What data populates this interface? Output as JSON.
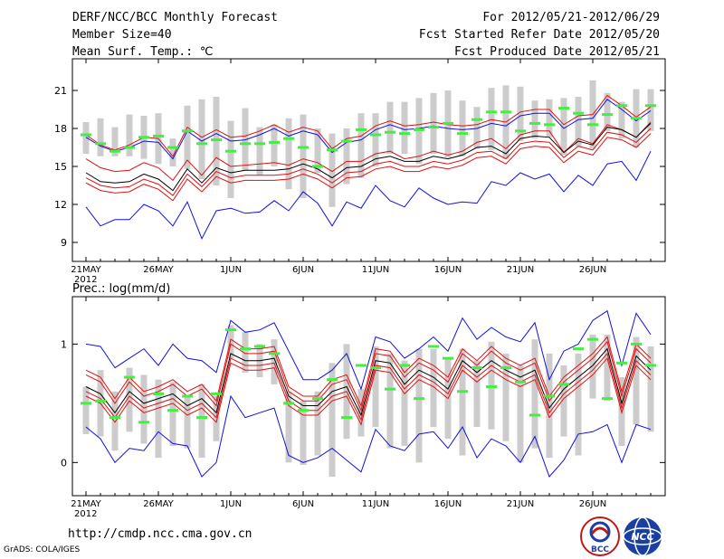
{
  "header": {
    "title": "DERF/NCC/BCC Monthly Forecast",
    "member_size": "Member Size=40",
    "variable": "Mean Surf. Temp.: ℃",
    "period": "For 2012/05/21-2012/06/29",
    "started": "Fcst Started Refer Date 2012/05/20",
    "produced": "Fcst Produced Date 2012/05/21"
  },
  "footer": {
    "url": "http://cmdp.ncc.cma.gov.cn",
    "grads": "GrADS: COLA/IGES",
    "logo_bcc": "BCC",
    "logo_ncc": "NCC"
  },
  "colors": {
    "envelope": "#1010e0",
    "ci": "#e01010",
    "mean": "#000000",
    "obs": "#44ee44",
    "box": "#cccccc"
  },
  "chart_data": [
    {
      "type": "line",
      "title": "Mean Surf. Temp.: ℃",
      "days": 40,
      "start": "2012-05-21",
      "x_ticks": [
        "21MAY",
        "26MAY",
        "1JUN",
        "6JUN",
        "11JUN",
        "16JUN",
        "21JUN",
        "26JUN"
      ],
      "x_year": "2012",
      "ylim": [
        7.5,
        23.5
      ],
      "y_ticks": [
        9,
        12,
        15,
        18,
        21
      ],
      "series": [
        {
          "name": "max",
          "values": [
            11.8,
            10.3,
            10.8,
            10.8,
            12.0,
            11.5,
            10.3,
            12.2,
            9.3,
            11.5,
            11.7,
            11.3,
            11.4,
            12.3,
            11.5,
            13.0,
            12.1,
            10.3,
            12.2,
            11.7,
            13.5,
            12.3,
            11.8,
            13.3,
            12.5,
            12.0,
            12.2,
            12.1,
            13.8,
            13.5,
            14.5,
            14.0,
            14.4,
            13.0,
            14.3,
            13.5,
            15.2,
            15.4,
            13.9,
            16.2
          ]
        },
        {
          "name": "upper_ci",
          "values": [
            17.5,
            16.7,
            16.3,
            16.7,
            17.3,
            17.2,
            15.8,
            18.1,
            17.3,
            17.9,
            17.3,
            17.4,
            17.8,
            18.3,
            17.7,
            18.1,
            17.8,
            16.4,
            17.2,
            17.4,
            18.2,
            18.6,
            18.2,
            18.3,
            18.5,
            18.3,
            18.2,
            18.3,
            18.7,
            18.5,
            19.3,
            19.5,
            19.5,
            18.3,
            19.0,
            19.1,
            20.6,
            19.8,
            18.9,
            19.7
          ]
        },
        {
          "name": "upper",
          "values": [
            15.6,
            14.9,
            14.6,
            14.7,
            15.3,
            14.9,
            13.9,
            15.5,
            14.3,
            15.7,
            15.0,
            15.1,
            15.2,
            15.3,
            15.1,
            15.6,
            15.3,
            14.6,
            15.4,
            15.4,
            16.0,
            16.2,
            15.6,
            15.8,
            16.2,
            15.9,
            16.2,
            16.9,
            17.2,
            16.4,
            17.5,
            17.8,
            17.8,
            16.1,
            17.2,
            16.8,
            18.3,
            17.9,
            17.3,
            18.5
          ]
        },
        {
          "name": "mean",
          "values": [
            14.5,
            13.8,
            13.7,
            13.8,
            14.4,
            14.0,
            13.1,
            14.8,
            13.7,
            14.9,
            14.5,
            14.7,
            14.7,
            14.7,
            14.8,
            15.2,
            14.8,
            14.1,
            14.9,
            15.0,
            15.6,
            15.8,
            15.4,
            15.4,
            15.8,
            15.6,
            15.9,
            16.5,
            16.6,
            16.0,
            17.2,
            17.4,
            17.3,
            16.1,
            17.0,
            16.7,
            18.1,
            17.9,
            17.3,
            18.4
          ]
        },
        {
          "name": "lower",
          "values": [
            13.7,
            13.1,
            12.9,
            13.0,
            13.6,
            13.2,
            12.3,
            14.0,
            13.0,
            14.2,
            13.7,
            13.9,
            13.9,
            13.9,
            14.0,
            14.4,
            14.0,
            13.3,
            14.1,
            14.2,
            14.8,
            15.0,
            14.6,
            14.6,
            15.0,
            14.8,
            15.1,
            15.7,
            15.8,
            15.2,
            16.4,
            16.6,
            16.5,
            15.3,
            16.2,
            15.9,
            17.3,
            17.1,
            16.5,
            17.6
          ]
        },
        {
          "name": "lower_ci",
          "values": [
            14.1,
            13.5,
            13.3,
            13.4,
            14.0,
            13.6,
            12.7,
            14.4,
            13.4,
            14.6,
            14.1,
            14.3,
            14.3,
            14.3,
            14.4,
            14.8,
            14.4,
            13.7,
            14.5,
            14.6,
            15.2,
            15.4,
            15.0,
            15.0,
            15.4,
            15.2,
            15.5,
            16.1,
            16.2,
            15.6,
            16.8,
            17.0,
            16.9,
            15.7,
            16.6,
            16.3,
            17.7,
            17.5,
            16.9,
            18.0
          ]
        },
        {
          "name": "min",
          "values": [
            17.3,
            16.6,
            16.2,
            16.5,
            17.0,
            16.9,
            15.6,
            17.8,
            17.0,
            17.6,
            17.0,
            17.1,
            17.5,
            18.0,
            17.4,
            17.8,
            17.5,
            16.1,
            16.9,
            17.1,
            17.9,
            18.3,
            17.9,
            18.0,
            18.2,
            18.0,
            17.9,
            18.0,
            18.4,
            18.2,
            19.0,
            19.2,
            19.2,
            18.0,
            18.7,
            18.8,
            20.3,
            19.5,
            18.6,
            19.4
          ]
        }
      ],
      "boxes_low": [
        16.0,
        15.8,
        15.8,
        15.8,
        15.6,
        15.2,
        15.0,
        14.8,
        14.0,
        13.5,
        12.5,
        14.7,
        14.3,
        15.0,
        13.2,
        12.5,
        14.5,
        11.8,
        13.6,
        14.1,
        15.0,
        16.0,
        16.0,
        15.2,
        16.0,
        15.7,
        15.8,
        16.4,
        16.3,
        15.6,
        17.0,
        17.2,
        17.3,
        15.9,
        16.6,
        16.4,
        17.8,
        17.2,
        16.5,
        17.8
      ],
      "boxes_high": [
        18.5,
        18.8,
        18.1,
        19.1,
        19.0,
        19.2,
        17.2,
        19.8,
        20.3,
        20.5,
        18.6,
        19.6,
        18.1,
        18.3,
        18.8,
        19.1,
        18.0,
        17.6,
        18.0,
        19.2,
        19.2,
        20.1,
        20.1,
        20.4,
        20.8,
        21.0,
        20.2,
        19.7,
        21.2,
        21.4,
        21.3,
        20.2,
        20.3,
        20.4,
        20.5,
        21.8,
        20.8,
        20.1,
        21.1,
        21.1
      ],
      "obs": [
        17.5,
        16.8,
        16.2,
        16.5,
        17.3,
        17.4,
        16.5,
        17.8,
        16.8,
        17.1,
        16.2,
        16.8,
        16.8,
        16.9,
        17.2,
        16.5,
        15.0,
        16.3,
        17.0,
        17.9,
        17.5,
        17.7,
        17.6,
        17.9,
        18.1,
        18.4,
        17.6,
        18.7,
        19.3,
        19.3,
        17.8,
        18.4,
        18.3,
        19.6,
        19.2,
        18.3,
        19.1,
        19.8,
        18.8,
        19.8
      ]
    },
    {
      "type": "line",
      "title": "Prec.: log(mm/d)",
      "days": 40,
      "start": "2012-05-21",
      "x_ticks": [
        "21MAY",
        "26MAY",
        "1JUN",
        "6JUN",
        "11JUN",
        "16JUN",
        "21JUN",
        "26JUN"
      ],
      "x_year": "2012",
      "ylim": [
        -0.28,
        1.4
      ],
      "y_ticks": [
        0,
        1
      ],
      "series": [
        {
          "name": "max",
          "values": [
            1.0,
            0.98,
            0.8,
            0.88,
            0.96,
            0.82,
            1.0,
            0.88,
            0.86,
            0.76,
            1.2,
            1.1,
            1.12,
            1.18,
            0.94,
            0.7,
            0.7,
            0.78,
            0.92,
            0.62,
            1.06,
            1.02,
            0.88,
            0.96,
            1.06,
            0.94,
            1.22,
            1.04,
            1.14,
            1.06,
            1.02,
            1.18,
            0.7,
            0.94,
            1.0,
            1.2,
            1.28,
            0.82,
            1.26,
            1.08
          ]
        },
        {
          "name": "upper_ci",
          "values": [
            0.78,
            0.72,
            0.54,
            0.72,
            0.6,
            0.64,
            0.7,
            0.6,
            0.66,
            0.52,
            1.04,
            0.96,
            0.96,
            0.98,
            0.64,
            0.56,
            0.56,
            0.7,
            0.74,
            0.48,
            0.96,
            0.94,
            0.76,
            0.88,
            0.82,
            0.72,
            0.96,
            0.86,
            0.98,
            0.88,
            0.82,
            0.88,
            0.56,
            0.72,
            0.82,
            0.92,
            1.06,
            0.6,
            1.0,
            0.88
          ]
        },
        {
          "name": "upper",
          "values": [
            0.74,
            0.68,
            0.5,
            0.68,
            0.56,
            0.6,
            0.66,
            0.56,
            0.62,
            0.48,
            1.0,
            0.92,
            0.92,
            0.94,
            0.6,
            0.52,
            0.52,
            0.66,
            0.7,
            0.44,
            0.92,
            0.9,
            0.72,
            0.84,
            0.78,
            0.68,
            0.92,
            0.82,
            0.94,
            0.84,
            0.78,
            0.84,
            0.52,
            0.68,
            0.78,
            0.88,
            1.02,
            0.56,
            0.96,
            0.84
          ]
        },
        {
          "name": "mean",
          "values": [
            0.64,
            0.58,
            0.42,
            0.6,
            0.5,
            0.54,
            0.58,
            0.48,
            0.54,
            0.42,
            0.92,
            0.86,
            0.86,
            0.88,
            0.56,
            0.48,
            0.48,
            0.6,
            0.64,
            0.4,
            0.86,
            0.84,
            0.66,
            0.78,
            0.72,
            0.62,
            0.86,
            0.76,
            0.86,
            0.78,
            0.72,
            0.78,
            0.46,
            0.62,
            0.72,
            0.82,
            0.96,
            0.5,
            0.9,
            0.78
          ]
        },
        {
          "name": "lower",
          "values": [
            0.56,
            0.5,
            0.34,
            0.52,
            0.42,
            0.46,
            0.5,
            0.4,
            0.46,
            0.34,
            0.84,
            0.78,
            0.78,
            0.8,
            0.48,
            0.4,
            0.4,
            0.52,
            0.56,
            0.32,
            0.78,
            0.76,
            0.58,
            0.7,
            0.64,
            0.54,
            0.78,
            0.68,
            0.78,
            0.7,
            0.64,
            0.7,
            0.38,
            0.54,
            0.64,
            0.74,
            0.88,
            0.42,
            0.82,
            0.7
          ]
        },
        {
          "name": "lower_ci",
          "values": [
            0.6,
            0.54,
            0.38,
            0.56,
            0.46,
            0.5,
            0.54,
            0.44,
            0.5,
            0.38,
            0.88,
            0.82,
            0.82,
            0.84,
            0.52,
            0.44,
            0.44,
            0.56,
            0.6,
            0.36,
            0.82,
            0.8,
            0.62,
            0.74,
            0.68,
            0.58,
            0.82,
            0.72,
            0.82,
            0.74,
            0.68,
            0.74,
            0.42,
            0.58,
            0.68,
            0.78,
            0.92,
            0.46,
            0.86,
            0.74
          ]
        },
        {
          "name": "min",
          "values": [
            0.3,
            0.2,
            0.0,
            0.12,
            0.1,
            0.26,
            0.16,
            0.14,
            -0.12,
            0.0,
            0.56,
            0.38,
            0.42,
            0.46,
            0.06,
            0.0,
            0.04,
            0.12,
            0.02,
            -0.08,
            0.28,
            0.14,
            0.1,
            0.24,
            0.26,
            0.12,
            0.3,
            0.04,
            0.2,
            0.14,
            0.0,
            0.22,
            -0.12,
            0.02,
            0.24,
            0.26,
            0.32,
            0.0,
            0.32,
            0.28
          ]
        }
      ],
      "boxes_low": [
        0.24,
        0.22,
        0.1,
        0.26,
        0.16,
        0.04,
        0.14,
        0.12,
        0.04,
        0.18,
        0.88,
        0.76,
        0.72,
        0.66,
        0.0,
        -0.02,
        0.06,
        -0.12,
        0.2,
        0.22,
        0.3,
        0.12,
        0.14,
        0.0,
        0.3,
        0.2,
        0.06,
        0.3,
        0.28,
        0.18,
        0.0,
        0.12,
        0.04,
        0.22,
        0.06,
        0.54,
        0.52,
        0.14,
        0.32,
        0.26
      ],
      "boxes_high": [
        0.64,
        0.78,
        0.6,
        0.8,
        0.74,
        0.7,
        0.68,
        0.56,
        0.66,
        0.56,
        1.16,
        1.1,
        1.0,
        1.04,
        0.6,
        0.52,
        0.6,
        0.84,
        1.0,
        0.62,
        0.98,
        0.92,
        0.86,
        0.96,
        0.96,
        0.88,
        0.96,
        0.86,
        1.02,
        0.92,
        0.82,
        1.04,
        0.92,
        0.82,
        0.92,
        1.08,
        1.08,
        0.72,
        1.06,
        0.98
      ],
      "obs": [
        0.5,
        0.52,
        0.38,
        0.72,
        0.34,
        0.58,
        0.44,
        0.56,
        0.38,
        0.58,
        1.12,
        0.96,
        0.98,
        0.92,
        0.5,
        0.44,
        0.54,
        0.7,
        0.38,
        0.82,
        0.8,
        0.62,
        0.82,
        0.54,
        0.98,
        0.88,
        0.6,
        0.8,
        0.64,
        0.8,
        0.68,
        0.4,
        0.56,
        0.66,
        0.96,
        1.04,
        0.54,
        0.84,
        1.0,
        0.82
      ]
    }
  ]
}
